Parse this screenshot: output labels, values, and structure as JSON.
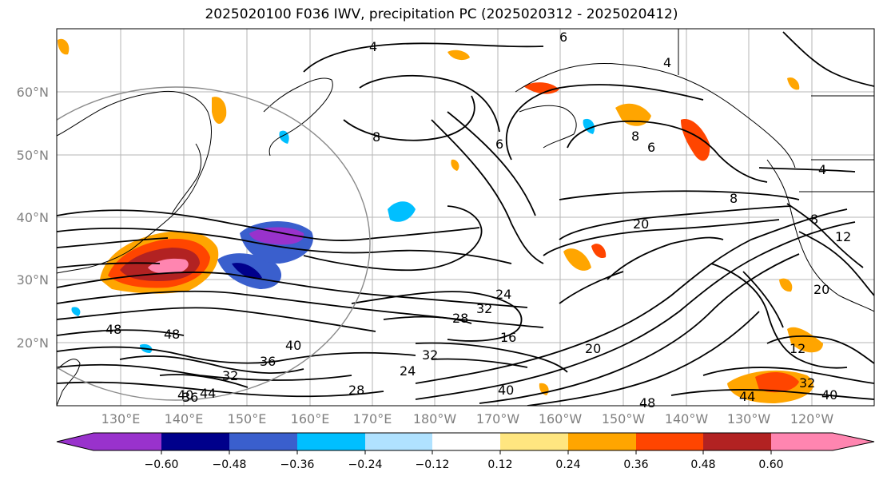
{
  "title": "2025020100 F036 IWV, precipitation PC (2025020312 - 2025020412)",
  "map": {
    "lat_labels": [
      "60°N",
      "50°N",
      "40°N",
      "30°N",
      "20°N"
    ],
    "lon_labels": [
      "130°E",
      "140°E",
      "150°E",
      "160°E",
      "170°E",
      "180°W",
      "170°W",
      "160°W",
      "150°W",
      "140°W",
      "130°W",
      "120°W"
    ],
    "contour_labels": [
      "4",
      "8",
      "6",
      "4",
      "8",
      "6",
      "8",
      "6",
      "4",
      "8",
      "20",
      "12",
      "20",
      "24",
      "28",
      "32",
      "16",
      "20",
      "24",
      "32",
      "36",
      "40",
      "48",
      "40",
      "44",
      "48",
      "36",
      "32",
      "40",
      "48",
      "32",
      "28",
      "44",
      "40",
      "12"
    ],
    "colors": {
      "land_outline": "#000000",
      "contour": "#000000",
      "grid": "#b0b0b0",
      "circle": "#808080"
    }
  },
  "colorbar": {
    "tick_labels": [
      "−0.60",
      "−0.48",
      "−0.36",
      "−0.24",
      "−0.12",
      "0.12",
      "0.24",
      "0.36",
      "0.48",
      "0.60"
    ],
    "colors": [
      "#9932cc",
      "#00008b",
      "#3a5fcd",
      "#00bfff",
      "#b0e2ff",
      "#ffffff",
      "#ffe680",
      "#ffa500",
      "#ff4500",
      "#b22222",
      "#ff85b0"
    ]
  }
}
